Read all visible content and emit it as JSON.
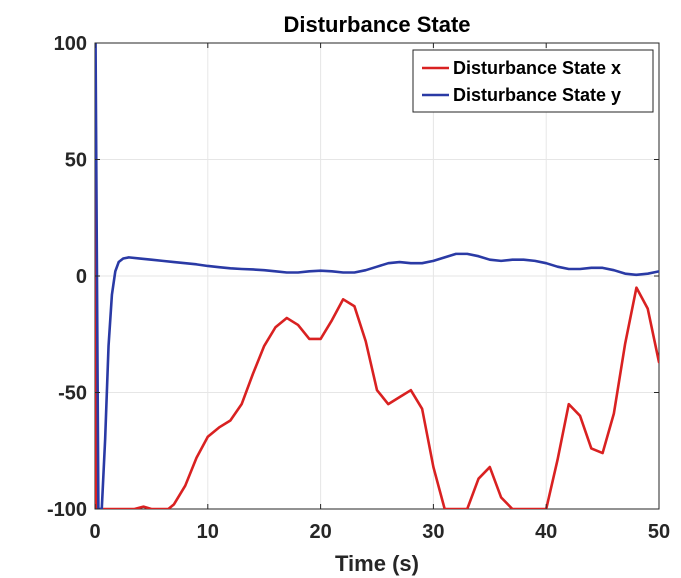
{
  "chart_data": {
    "type": "line",
    "title": "Disturbance State",
    "xlabel": "Time (s)",
    "ylabel": "",
    "xlim": [
      0,
      50
    ],
    "ylim": [
      -100,
      100
    ],
    "xticks": [
      0,
      10,
      20,
      30,
      40,
      50
    ],
    "yticks": [
      -100,
      -50,
      0,
      50,
      100
    ],
    "xtick_labels": [
      "0",
      "10",
      "20",
      "30",
      "40",
      "50"
    ],
    "ytick_labels": [
      "-100",
      "-50",
      "0",
      "50",
      "100"
    ],
    "grid": true,
    "legend_position": "top-right",
    "series": [
      {
        "name": "Disturbance State x",
        "color": "#d92121",
        "x": [
          0,
          0.05,
          0.1,
          0.3,
          1,
          2,
          3,
          3.5,
          4.3,
          5,
          6,
          6.5,
          7,
          8,
          9,
          10,
          11,
          12,
          13,
          14,
          15,
          16,
          17,
          18,
          19,
          20,
          21,
          22,
          23,
          24,
          25,
          26,
          27,
          28,
          29,
          30,
          31,
          32,
          33,
          34,
          35,
          36,
          37,
          38,
          39,
          40,
          41,
          42,
          43,
          44,
          45,
          46,
          47,
          48,
          49,
          50
        ],
        "y": [
          100,
          0,
          -100,
          -100,
          -100,
          -100,
          -100,
          -100,
          -99,
          -100,
          -100,
          -100,
          -98,
          -90,
          -78,
          -69,
          -65,
          -62,
          -55,
          -42,
          -30,
          -22,
          -18,
          -21,
          -27,
          -27,
          -19,
          -10,
          -13,
          -28,
          -49,
          -55,
          -52,
          -49,
          -57,
          -82,
          -100,
          -100,
          -100,
          -87,
          -82,
          -95,
          -100,
          -100,
          -100,
          -100,
          -79,
          -55,
          -60,
          -74,
          -76,
          -59,
          -29,
          -5,
          -14,
          -37
        ]
      },
      {
        "name": "Disturbance State y",
        "color": "#2a3aa5",
        "x": [
          0,
          0.05,
          0.3,
          0.6,
          0.9,
          1.2,
          1.5,
          1.8,
          2.1,
          2.5,
          3,
          4,
          5,
          6,
          7,
          8,
          9,
          10,
          11,
          12,
          13,
          14,
          15,
          16,
          17,
          18,
          19,
          20,
          21,
          22,
          23,
          24,
          25,
          26,
          27,
          28,
          29,
          30,
          31,
          32,
          33,
          34,
          35,
          36,
          37,
          38,
          39,
          40,
          41,
          42,
          43,
          44,
          45,
          46,
          47,
          48,
          49,
          50
        ],
        "y": [
          100,
          100,
          -100,
          -100,
          -70,
          -30,
          -8,
          2,
          6,
          7.5,
          8,
          7.5,
          7,
          6.5,
          6,
          5.5,
          5,
          4.3,
          3.8,
          3.3,
          3,
          2.8,
          2.5,
          2,
          1.5,
          1.5,
          2,
          2.3,
          2,
          1.5,
          1.5,
          2.5,
          4,
          5.5,
          6,
          5.5,
          5.5,
          6.5,
          8,
          9.5,
          9.5,
          8.5,
          7,
          6.5,
          7,
          7,
          6.5,
          5.5,
          4,
          3,
          3,
          3.5,
          3.5,
          2.5,
          1,
          0.5,
          1,
          2
        ]
      }
    ]
  }
}
